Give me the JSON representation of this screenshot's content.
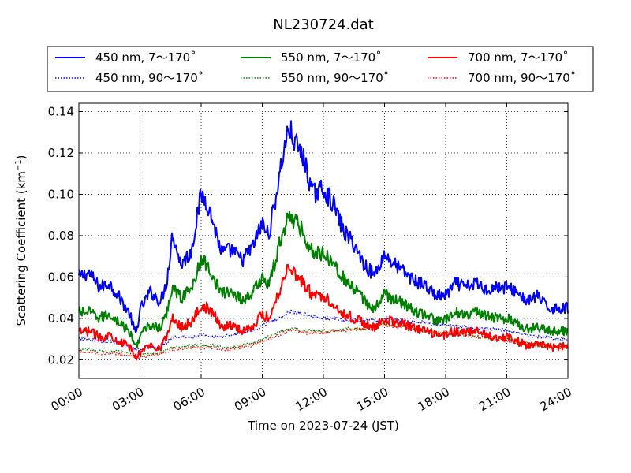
{
  "chart_data": {
    "type": "line",
    "title": "NL230724.dat",
    "xlabel": "Time on 2023-07-24 (JST)",
    "ylabel": "Scattering Coefficient (km",
    "ylabel_exp": "−1",
    "ylabel_close": ")",
    "xlim": [
      0,
      24
    ],
    "ylim": [
      0.011,
      0.144
    ],
    "grid": true,
    "x_ticks": [
      0,
      3,
      6,
      9,
      12,
      15,
      18,
      21,
      24
    ],
    "x_tick_labels": [
      "00:00",
      "03:00",
      "06:00",
      "09:00",
      "12:00",
      "15:00",
      "18:00",
      "21:00",
      "24:00"
    ],
    "y_ticks": [
      0.02,
      0.04,
      0.06,
      0.08,
      0.1,
      0.12,
      0.14
    ],
    "y_tick_labels": [
      "0.02",
      "0.04",
      "0.06",
      "0.08",
      "0.10",
      "0.12",
      "0.14"
    ],
    "legend_position": "top",
    "x": [
      0,
      0.5,
      1,
      1.5,
      2,
      2.5,
      2.8,
      3,
      3.5,
      4,
      4.3,
      4.6,
      5,
      5.5,
      6,
      6.3,
      6.6,
      7,
      7.5,
      8,
      8.5,
      9,
      9.3,
      9.6,
      10,
      10.3,
      10.6,
      11,
      11.5,
      12,
      12.5,
      13,
      13.5,
      14,
      14.5,
      15,
      15.5,
      16,
      16.5,
      17,
      17.5,
      18,
      18.5,
      19,
      19.5,
      20,
      20.5,
      21,
      21.5,
      22,
      22.5,
      23,
      23.5,
      24
    ],
    "series": [
      {
        "name": "450 nm, 7～170˚",
        "color": "#0000ff",
        "style": "solid",
        "values": [
          0.06,
          0.062,
          0.055,
          0.057,
          0.05,
          0.042,
          0.032,
          0.044,
          0.053,
          0.048,
          0.057,
          0.081,
          0.066,
          0.072,
          0.1,
          0.096,
          0.086,
          0.072,
          0.073,
          0.068,
          0.074,
          0.086,
          0.08,
          0.095,
          0.118,
          0.132,
          0.125,
          0.118,
          0.1,
          0.103,
          0.095,
          0.082,
          0.076,
          0.066,
          0.061,
          0.071,
          0.066,
          0.062,
          0.058,
          0.056,
          0.051,
          0.051,
          0.057,
          0.055,
          0.057,
          0.054,
          0.055,
          0.055,
          0.053,
          0.048,
          0.051,
          0.045,
          0.045,
          0.045
        ]
      },
      {
        "name": "550 nm, 7～170˚",
        "color": "#008000",
        "style": "solid",
        "values": [
          0.043,
          0.043,
          0.04,
          0.042,
          0.038,
          0.033,
          0.026,
          0.032,
          0.037,
          0.035,
          0.042,
          0.056,
          0.05,
          0.054,
          0.068,
          0.066,
          0.06,
          0.052,
          0.053,
          0.049,
          0.052,
          0.06,
          0.056,
          0.066,
          0.082,
          0.09,
          0.087,
          0.082,
          0.071,
          0.072,
          0.067,
          0.059,
          0.054,
          0.049,
          0.044,
          0.052,
          0.049,
          0.047,
          0.043,
          0.042,
          0.039,
          0.039,
          0.043,
          0.042,
          0.043,
          0.041,
          0.04,
          0.04,
          0.038,
          0.035,
          0.036,
          0.034,
          0.034,
          0.034
        ]
      },
      {
        "name": "700 nm, 7～170˚",
        "color": "#ff0000",
        "style": "solid",
        "values": [
          0.033,
          0.034,
          0.031,
          0.032,
          0.029,
          0.026,
          0.021,
          0.024,
          0.027,
          0.026,
          0.031,
          0.04,
          0.036,
          0.038,
          0.046,
          0.045,
          0.042,
          0.036,
          0.037,
          0.034,
          0.036,
          0.042,
          0.04,
          0.047,
          0.058,
          0.066,
          0.062,
          0.057,
          0.051,
          0.051,
          0.047,
          0.042,
          0.04,
          0.038,
          0.035,
          0.04,
          0.038,
          0.037,
          0.035,
          0.034,
          0.032,
          0.032,
          0.034,
          0.033,
          0.034,
          0.032,
          0.031,
          0.031,
          0.029,
          0.027,
          0.028,
          0.026,
          0.026,
          0.027
        ]
      },
      {
        "name": "450 nm, 90～170˚",
        "color": "#0000ff",
        "style": "dotted",
        "values": [
          0.03,
          0.03,
          0.029,
          0.029,
          0.028,
          0.026,
          0.025,
          0.025,
          0.026,
          0.027,
          0.028,
          0.031,
          0.031,
          0.031,
          0.032,
          0.032,
          0.031,
          0.031,
          0.032,
          0.033,
          0.034,
          0.036,
          0.038,
          0.039,
          0.041,
          0.043,
          0.043,
          0.042,
          0.041,
          0.04,
          0.04,
          0.039,
          0.039,
          0.039,
          0.039,
          0.04,
          0.039,
          0.039,
          0.038,
          0.038,
          0.037,
          0.037,
          0.036,
          0.036,
          0.035,
          0.035,
          0.035,
          0.034,
          0.033,
          0.032,
          0.031,
          0.031,
          0.03,
          0.03
        ]
      },
      {
        "name": "550 nm, 90～170˚",
        "color": "#008000",
        "style": "dotted",
        "values": [
          0.025,
          0.025,
          0.024,
          0.024,
          0.024,
          0.023,
          0.022,
          0.022,
          0.023,
          0.024,
          0.025,
          0.026,
          0.026,
          0.027,
          0.027,
          0.027,
          0.027,
          0.026,
          0.026,
          0.027,
          0.028,
          0.03,
          0.031,
          0.032,
          0.034,
          0.035,
          0.035,
          0.034,
          0.034,
          0.034,
          0.034,
          0.035,
          0.035,
          0.035,
          0.036,
          0.037,
          0.036,
          0.036,
          0.035,
          0.034,
          0.033,
          0.033,
          0.032,
          0.032,
          0.031,
          0.031,
          0.03,
          0.03,
          0.029,
          0.028,
          0.027,
          0.026,
          0.026,
          0.026
        ]
      },
      {
        "name": "700 nm, 90～170˚",
        "color": "#ff0000",
        "style": "dotted",
        "values": [
          0.024,
          0.024,
          0.023,
          0.023,
          0.023,
          0.022,
          0.021,
          0.021,
          0.022,
          0.023,
          0.024,
          0.025,
          0.025,
          0.026,
          0.026,
          0.026,
          0.026,
          0.025,
          0.025,
          0.026,
          0.027,
          0.029,
          0.03,
          0.031,
          0.033,
          0.034,
          0.034,
          0.033,
          0.033,
          0.033,
          0.034,
          0.034,
          0.035,
          0.035,
          0.036,
          0.037,
          0.036,
          0.036,
          0.035,
          0.034,
          0.033,
          0.033,
          0.032,
          0.032,
          0.031,
          0.031,
          0.03,
          0.029,
          0.028,
          0.028,
          0.027,
          0.026,
          0.026,
          0.026
        ]
      }
    ]
  }
}
